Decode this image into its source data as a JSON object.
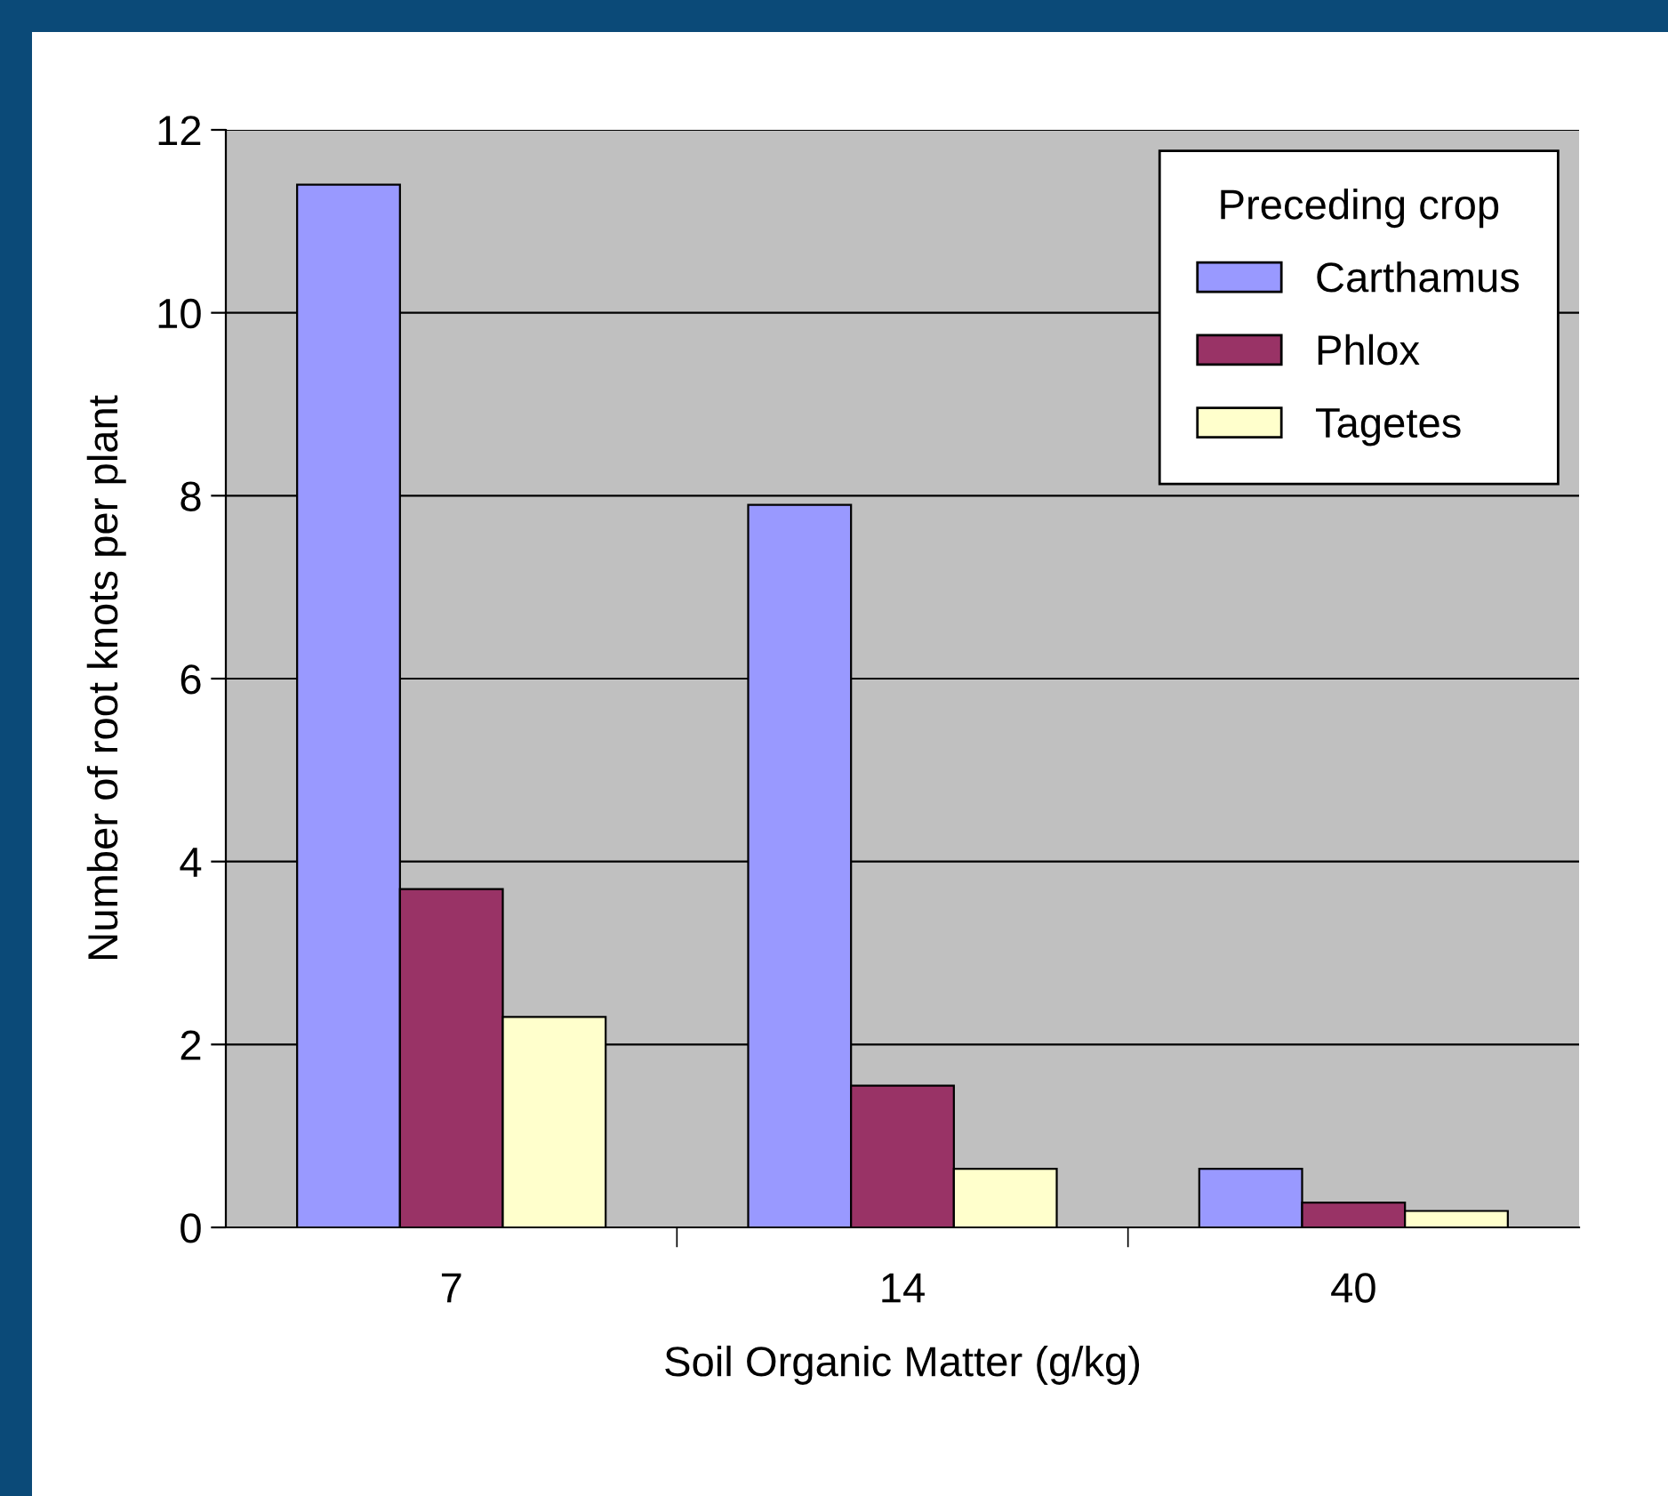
{
  "chart_data": {
    "type": "bar",
    "xlabel": "Soil Organic Matter (g/kg)",
    "ylabel": "Number of root knots per plant",
    "legend_title": "Preceding crop",
    "categories": [
      "7",
      "14",
      "40"
    ],
    "series": [
      {
        "name": "Carthamus",
        "color": "#9999ff",
        "values": [
          11.4,
          7.9,
          0.64
        ]
      },
      {
        "name": "Phlox",
        "color": "#993366",
        "values": [
          3.7,
          1.55,
          0.27
        ]
      },
      {
        "name": "Tagetes",
        "color": "#ffffcc",
        "values": [
          2.3,
          0.64,
          0.18
        ]
      }
    ],
    "ylim": [
      0,
      12
    ],
    "yticks": [
      0,
      2,
      4,
      6,
      8,
      10,
      12
    ],
    "grid": "y",
    "legend": "top right"
  }
}
